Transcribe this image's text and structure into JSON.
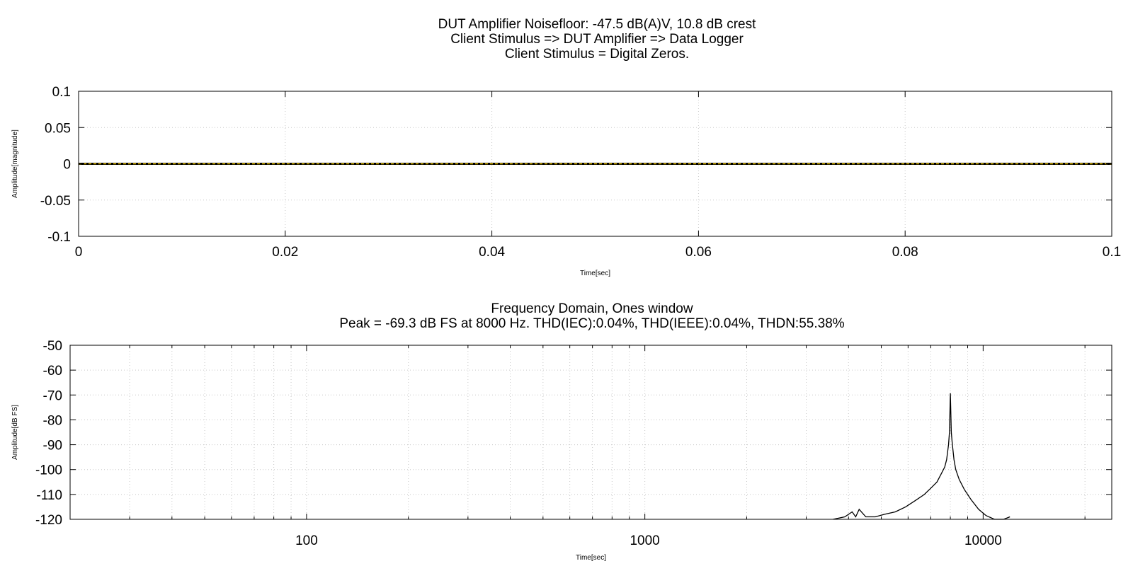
{
  "chart_data": [
    {
      "type": "line",
      "title_lines": [
        "DUT Amplifier Noisefloor: -47.5 dB(A)V, 10.8 dB crest",
        "Client Stimulus => DUT Amplifier => Data Logger",
        "Client Stimulus = Digital Zeros."
      ],
      "xlabel": "Time[sec]",
      "ylabel": "Amplitude[magnitude]",
      "xlim": [
        0,
        0.1
      ],
      "ylim": [
        -0.1,
        0.1
      ],
      "x_ticks": [
        0,
        0.02,
        0.04,
        0.06,
        0.08,
        0.1
      ],
      "x_tick_labels": [
        "0",
        "0.02",
        "0.04",
        "0.06",
        "0.08",
        "0.1"
      ],
      "y_ticks": [
        0.1,
        0.05,
        0,
        -0.05,
        -0.1
      ],
      "y_tick_labels": [
        "0.1",
        "0.05",
        "0",
        "-0.05",
        "-0.1"
      ],
      "grid": true,
      "series": [
        {
          "color": "#000000",
          "x": [
            0,
            0.1
          ],
          "y": [
            0,
            0
          ]
        },
        {
          "color": "#e8c000",
          "x": [
            0,
            0.1
          ],
          "y": [
            0,
            0
          ]
        }
      ]
    },
    {
      "type": "line",
      "title_lines": [
        "Frequency Domain, Ones window",
        "Peak = -69.3 dB FS at 8000 Hz. THD(IEC):0.04%, THD(IEEE):0.04%, THDN:55.38%"
      ],
      "xlabel": "Time[sec]",
      "ylabel": "Amplitude[dB FS]",
      "x_scale": "log",
      "xlim": [
        20,
        24000
      ],
      "ylim": [
        -120,
        -50
      ],
      "x_ticks": [
        100,
        1000,
        10000
      ],
      "x_tick_labels": [
        "100",
        "1000",
        "10000"
      ],
      "y_ticks": [
        -50,
        -60,
        -70,
        -80,
        -90,
        -100,
        -110,
        -120
      ],
      "y_tick_labels": [
        "-50",
        "-60",
        "-70",
        "-80",
        "-90",
        "-100",
        "-110",
        "-120"
      ],
      "grid": true,
      "series": [
        {
          "color": "#000000",
          "x": [
            3600,
            3900,
            4100,
            4200,
            4300,
            4500,
            4800,
            5100,
            5500,
            5900,
            6300,
            6700,
            7000,
            7300,
            7500,
            7700,
            7800,
            7900,
            7950,
            8000,
            8050,
            8100,
            8200,
            8300,
            8500,
            8800,
            9200,
            9700,
            10200,
            10800,
            11500,
            12000
          ],
          "y": [
            -120,
            -119,
            -117,
            -119,
            -116,
            -119,
            -119,
            -118,
            -117,
            -115,
            -112.5,
            -110,
            -107.5,
            -105,
            -102,
            -99,
            -96,
            -90,
            -85,
            -69.3,
            -85,
            -89,
            -96,
            -100,
            -104,
            -108,
            -112,
            -116,
            -118.5,
            -120,
            -120,
            -119
          ]
        }
      ]
    }
  ]
}
